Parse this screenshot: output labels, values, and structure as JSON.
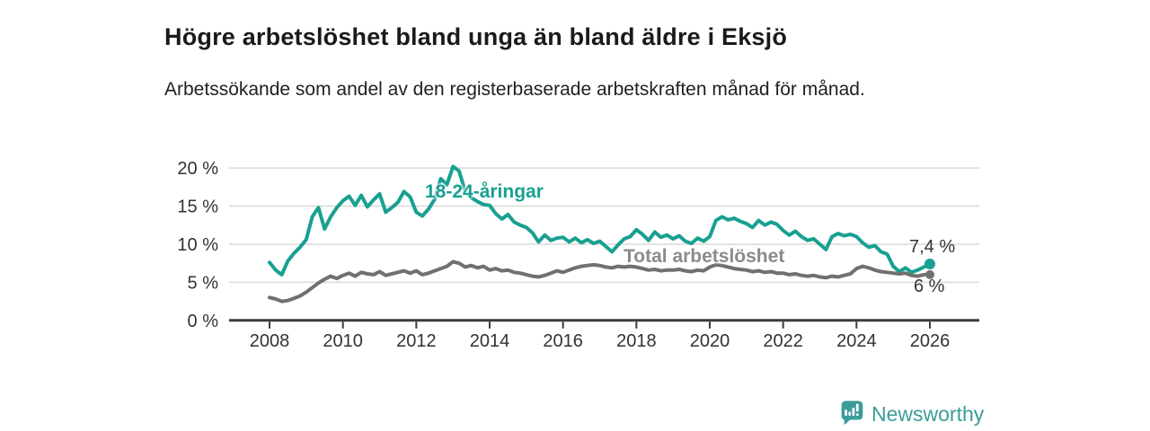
{
  "title": "Högre arbetslöshet bland unga än bland äldre i Eksjö",
  "subtitle": "Arbetssökande som andel av den registerbaserade arbetskraften månad för månad.",
  "branding": {
    "name": "Newsworthy",
    "icon": "newsworthy-bubble-chart-icon",
    "color": "#3b9c98"
  },
  "colors": {
    "young_series": "#18a091",
    "total_series": "#707070",
    "total_label": "#8b8b8b",
    "axis": "#3c3c3c",
    "grid": "#d9d9d9",
    "tick_text": "#323232",
    "background": "#ffffff"
  },
  "chart_data": {
    "type": "line",
    "title": "Högre arbetslöshet bland unga än bland äldre i Eksjö",
    "subtitle": "Arbetssökande som andel av den registerbaserade arbetskraften månad för månad.",
    "xlabel": "",
    "ylabel": "",
    "grid": "horizontal",
    "legend_position": "inline-labels",
    "x_start": 2008.0,
    "x_end": 2026.0,
    "points_per_year": 6,
    "xlim": [
      2008,
      2026
    ],
    "ylim": [
      0,
      21
    ],
    "x_ticks": [
      {
        "label": "2008",
        "value": 2008
      },
      {
        "label": "2010",
        "value": 2010
      },
      {
        "label": "2012",
        "value": 2012
      },
      {
        "label": "2014",
        "value": 2014
      },
      {
        "label": "2016",
        "value": 2016
      },
      {
        "label": "2018",
        "value": 2018
      },
      {
        "label": "2020",
        "value": 2020
      },
      {
        "label": "2022",
        "value": 2022
      },
      {
        "label": "2024",
        "value": 2024
      },
      {
        "label": "2026",
        "value": 2026
      }
    ],
    "y_ticks": [
      {
        "label": "0 %",
        "value": 0
      },
      {
        "label": "5 %",
        "value": 5
      },
      {
        "label": "10 %",
        "value": 10
      },
      {
        "label": "15 %",
        "value": 15
      },
      {
        "label": "20 %",
        "value": 20
      }
    ],
    "series": [
      {
        "name": "18-24-åringar",
        "color": "#18a091",
        "end_value": 7.4,
        "end_label": "7,4 %",
        "values": [
          7.6,
          6.6,
          6.0,
          7.8,
          8.8,
          9.6,
          10.6,
          13.6,
          14.8,
          12.0,
          13.6,
          14.8,
          15.7,
          16.3,
          15.1,
          16.4,
          14.9,
          15.8,
          16.6,
          14.2,
          14.8,
          15.5,
          16.9,
          16.2,
          14.2,
          13.7,
          14.6,
          15.9,
          18.6,
          17.8,
          20.2,
          19.6,
          16.9,
          16.1,
          15.6,
          15.2,
          15.1,
          14.0,
          13.3,
          13.9,
          12.9,
          12.5,
          12.2,
          11.5,
          10.3,
          11.2,
          10.5,
          10.8,
          10.9,
          10.3,
          10.8,
          10.2,
          10.6,
          10.1,
          10.4,
          9.7,
          9.0,
          9.9,
          10.7,
          11.0,
          11.9,
          11.3,
          10.5,
          11.6,
          10.9,
          11.2,
          10.7,
          11.1,
          10.4,
          10.1,
          10.8,
          10.4,
          11.0,
          13.1,
          13.6,
          13.2,
          13.4,
          13.0,
          12.7,
          12.2,
          13.1,
          12.5,
          12.9,
          12.6,
          11.8,
          11.2,
          11.7,
          11.0,
          10.5,
          10.7,
          10.0,
          9.3,
          11.0,
          11.4,
          11.1,
          11.3,
          11.0,
          10.2,
          9.6,
          9.8,
          9.0,
          8.7,
          7.1,
          6.4,
          6.9,
          6.3,
          6.6,
          7.0,
          7.4
        ]
      },
      {
        "name": "Total arbetslöshet",
        "color": "#707070",
        "end_value": 6.0,
        "end_label": "6 %",
        "values": [
          3.0,
          2.8,
          2.5,
          2.6,
          2.9,
          3.2,
          3.7,
          4.3,
          4.9,
          5.4,
          5.8,
          5.5,
          5.9,
          6.2,
          5.8,
          6.3,
          6.1,
          6.0,
          6.4,
          5.9,
          6.1,
          6.3,
          6.5,
          6.2,
          6.5,
          6.0,
          6.2,
          6.5,
          6.8,
          7.1,
          7.7,
          7.5,
          7.0,
          7.2,
          6.9,
          7.1,
          6.6,
          6.8,
          6.5,
          6.6,
          6.3,
          6.2,
          6.0,
          5.8,
          5.7,
          5.9,
          6.2,
          6.5,
          6.3,
          6.6,
          6.9,
          7.1,
          7.2,
          7.3,
          7.2,
          7.0,
          6.9,
          7.1,
          7.0,
          7.1,
          7.0,
          6.8,
          6.6,
          6.7,
          6.5,
          6.6,
          6.6,
          6.7,
          6.5,
          6.4,
          6.6,
          6.5,
          7.0,
          7.3,
          7.2,
          7.0,
          6.8,
          6.7,
          6.6,
          6.4,
          6.5,
          6.3,
          6.4,
          6.2,
          6.2,
          6.0,
          6.1,
          5.9,
          5.8,
          5.9,
          5.7,
          5.6,
          5.8,
          5.7,
          5.9,
          6.1,
          6.8,
          7.1,
          6.9,
          6.6,
          6.4,
          6.3,
          6.2,
          6.1,
          6.2,
          5.9,
          5.8,
          6.0,
          6.0
        ]
      }
    ]
  }
}
